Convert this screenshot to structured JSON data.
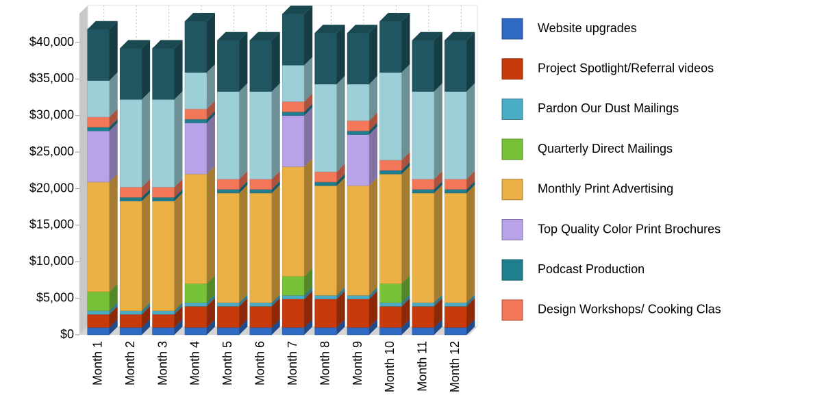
{
  "chart_data": {
    "type": "bar3d_stacked",
    "categories": [
      "Month 1",
      "Month 2",
      "Month 3",
      "Month 4",
      "Month 5",
      "Month 6",
      "Month 7",
      "Month 8",
      "Month 9",
      "Month 10",
      "Month 11",
      "Month 12"
    ],
    "series": [
      {
        "name": "Website upgrades",
        "color": "#2f6ac4",
        "values": [
          1000,
          1000,
          1000,
          1000,
          1000,
          1000,
          1000,
          1000,
          1000,
          1000,
          1000,
          1000
        ]
      },
      {
        "name": "Project Spotlight/Referral videos",
        "color": "#c63a0b",
        "values": [
          1800,
          1800,
          1800,
          2900,
          2900,
          2900,
          3900,
          3900,
          3900,
          2900,
          2900,
          2900
        ]
      },
      {
        "name": "Pardon Our Dust Mailings",
        "color": "#4bacc6",
        "values": [
          500,
          500,
          500,
          500,
          500,
          500,
          500,
          500,
          500,
          500,
          500,
          500
        ]
      },
      {
        "name": "Quarterly Direct Mailings",
        "color": "#78c23a",
        "values": [
          2600,
          0,
          0,
          2600,
          0,
          0,
          2600,
          0,
          0,
          2600,
          0,
          0
        ]
      },
      {
        "name": "Monthly Print Advertising",
        "color": "#ebb146",
        "values": [
          15000,
          15000,
          15000,
          15000,
          15000,
          15000,
          15000,
          15000,
          15000,
          15000,
          15000,
          15000
        ]
      },
      {
        "name": "Top Quality Color Print Brochures",
        "color": "#b9a3e8",
        "values": [
          7000,
          0,
          0,
          7000,
          0,
          0,
          7000,
          0,
          7000,
          0,
          0,
          0
        ]
      },
      {
        "name": "Podcast Production",
        "color": "#1f7f8f",
        "values": [
          500,
          500,
          500,
          500,
          500,
          500,
          500,
          500,
          500,
          500,
          500,
          500
        ]
      },
      {
        "name": "Design Workshops/ Cooking Clas",
        "color": "#f5775a",
        "values": [
          1400,
          1400,
          1400,
          1400,
          1400,
          1400,
          1400,
          1400,
          1400,
          1400,
          1400,
          1400
        ]
      },
      {
        "color": "#9ccfd8",
        "values": [
          5000,
          12000,
          12000,
          5000,
          12000,
          12000,
          5000,
          12000,
          5000,
          12000,
          12000,
          12000
        ]
      },
      {
        "color": "#1f5661",
        "values": [
          7000,
          7000,
          7000,
          7000,
          7000,
          7000,
          7000,
          7000,
          7000,
          7000,
          7000,
          7000
        ]
      }
    ],
    "ylim": [
      0,
      40000
    ],
    "yticks": [
      {
        "value": 0,
        "label": "$0"
      },
      {
        "value": 5000,
        "label": "$5,000"
      },
      {
        "value": 10000,
        "label": "$10,000"
      },
      {
        "value": 15000,
        "label": "$15,000"
      },
      {
        "value": 20000,
        "label": "$20,000"
      },
      {
        "value": 25000,
        "label": "$25,000"
      },
      {
        "value": 30000,
        "label": "$30,000"
      },
      {
        "value": 35000,
        "label": "$35,000"
      },
      {
        "value": 40000,
        "label": "$40,000"
      }
    ]
  }
}
